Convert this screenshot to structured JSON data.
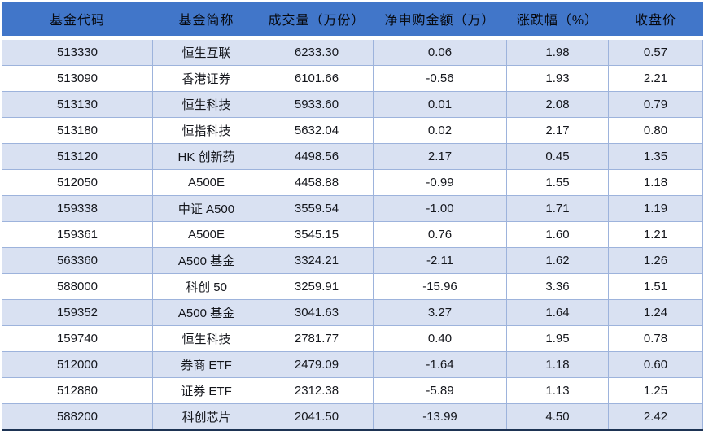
{
  "chart_data": {
    "type": "table",
    "title": "",
    "columns": [
      {
        "key": "code",
        "label": "基金代码"
      },
      {
        "key": "name",
        "label": "基金简称"
      },
      {
        "key": "volume",
        "label": "成交量（万份）"
      },
      {
        "key": "net",
        "label": "净申购金额（万）"
      },
      {
        "key": "change",
        "label": "涨跌幅（%）"
      },
      {
        "key": "close",
        "label": "收盘价"
      }
    ],
    "rows": [
      [
        "513330",
        "恒生互联",
        "6233.30",
        "0.06",
        "1.98",
        "0.57"
      ],
      [
        "513090",
        "香港证券",
        "6101.66",
        "-0.56",
        "1.93",
        "2.21"
      ],
      [
        "513130",
        "恒生科技",
        "5933.60",
        "0.01",
        "2.08",
        "0.79"
      ],
      [
        "513180",
        "恒指科技",
        "5632.04",
        "0.02",
        "2.17",
        "0.80"
      ],
      [
        "513120",
        "HK 创新药",
        "4498.56",
        "2.17",
        "0.45",
        "1.35"
      ],
      [
        "512050",
        "A500E",
        "4458.88",
        "-0.99",
        "1.55",
        "1.18"
      ],
      [
        "159338",
        "中证 A500",
        "3559.54",
        "-1.00",
        "1.71",
        "1.19"
      ],
      [
        "159361",
        "A500E",
        "3545.15",
        "0.76",
        "1.60",
        "1.21"
      ],
      [
        "563360",
        "A500 基金",
        "3324.21",
        "-2.11",
        "1.62",
        "1.26"
      ],
      [
        "588000",
        "科创 50",
        "3259.91",
        "-15.96",
        "3.36",
        "1.51"
      ],
      [
        "159352",
        "A500 基金",
        "3041.63",
        "3.27",
        "1.64",
        "1.24"
      ],
      [
        "159740",
        "恒生科技",
        "2781.77",
        "0.40",
        "1.95",
        "0.78"
      ],
      [
        "512000",
        "券商 ETF",
        "2479.09",
        "-1.64",
        "1.18",
        "0.60"
      ],
      [
        "512880",
        "证券 ETF",
        "2312.38",
        "-5.89",
        "1.13",
        "1.25"
      ],
      [
        "588200",
        "科创芯片",
        "2041.50",
        "-13.99",
        "4.50",
        "2.42"
      ]
    ]
  },
  "colors": {
    "header_background": "#4176C9",
    "header_text": "#07090f",
    "stripe_row_background": "#D9E1F2",
    "plain_row_background": "#FFFFFF",
    "cell_border": "#9DB3DC",
    "bottom_rule": "#1D3354",
    "body_text": "#14161c"
  }
}
